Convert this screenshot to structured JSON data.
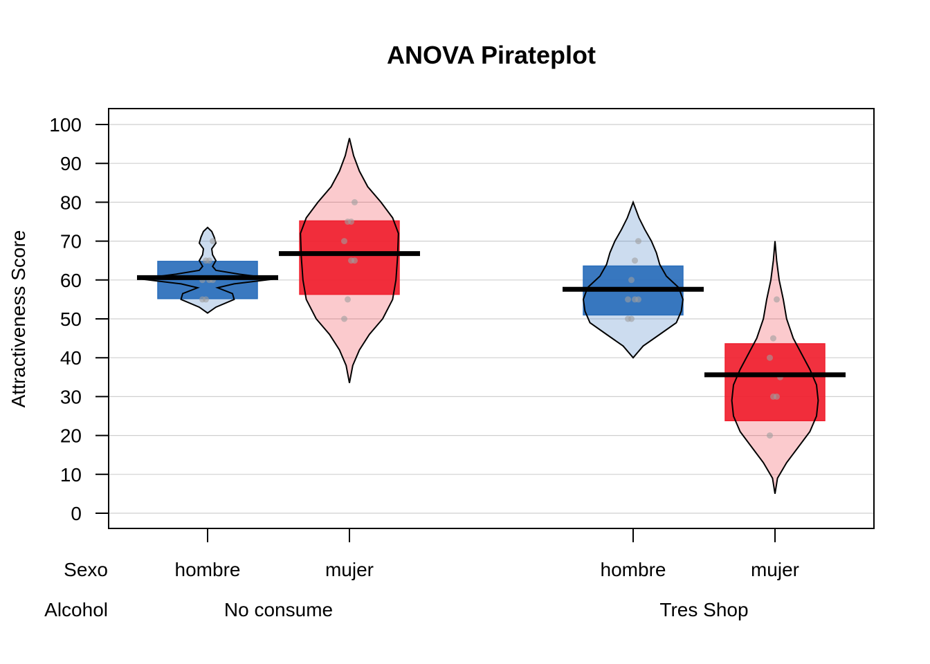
{
  "chart_data": {
    "type": "pirateplot",
    "title": "ANOVA Pirateplot",
    "ylabel": "Attractiveness Score",
    "ylim": [
      0,
      100
    ],
    "yticks": [
      0,
      10,
      20,
      30,
      40,
      50,
      60,
      70,
      80,
      90,
      100
    ],
    "grid": true,
    "row_labels": {
      "sexo": "Sexo",
      "alcohol": "Alcohol"
    },
    "alcohol_groups": [
      "No consume",
      "Tres Shop"
    ],
    "colors": {
      "hombre": "#2a6ebb",
      "mujer": "#f0202f",
      "mean_line": "#000000",
      "point": "#9e9e9e"
    },
    "groups": [
      {
        "sexo": "hombre",
        "alcohol": "No consume",
        "mean": 60.6,
        "ci": [
          55.2,
          64.8
        ],
        "range": [
          51.5,
          73.5
        ],
        "points": [
          55,
          55,
          60,
          60,
          60,
          65,
          65,
          70
        ],
        "density": [
          [
            51.5,
            0.0
          ],
          [
            53,
            0.1
          ],
          [
            55,
            0.32
          ],
          [
            56.5,
            0.3
          ],
          [
            58,
            0.12
          ],
          [
            59,
            0.32
          ],
          [
            60.3,
            0.82
          ],
          [
            61.5,
            0.38
          ],
          [
            62.5,
            0.1
          ],
          [
            63.5,
            0.06
          ],
          [
            65,
            0.1
          ],
          [
            66.5,
            0.06
          ],
          [
            68,
            0.05
          ],
          [
            69.5,
            0.1
          ],
          [
            71,
            0.08
          ],
          [
            72.5,
            0.05
          ],
          [
            73.5,
            0.0
          ]
        ]
      },
      {
        "sexo": "mujer",
        "alcohol": "No consume",
        "mean": 66.8,
        "ci": [
          56.3,
          75.2
        ],
        "range": [
          33.5,
          96.5
        ],
        "points": [
          50,
          55,
          65,
          65,
          70,
          75,
          75,
          80
        ],
        "density": [
          [
            33.5,
            0.0
          ],
          [
            38,
            0.04
          ],
          [
            42,
            0.12
          ],
          [
            46,
            0.24
          ],
          [
            50,
            0.4
          ],
          [
            55,
            0.52
          ],
          [
            60,
            0.56
          ],
          [
            66,
            0.58
          ],
          [
            72,
            0.59
          ],
          [
            76,
            0.52
          ],
          [
            80,
            0.38
          ],
          [
            84,
            0.22
          ],
          [
            88,
            0.12
          ],
          [
            92,
            0.05
          ],
          [
            96.5,
            0.0
          ]
        ]
      },
      {
        "sexo": "hombre",
        "alcohol": "Tres Shop",
        "mean": 57.6,
        "ci": [
          51.0,
          63.6
        ],
        "range": [
          40,
          80
        ],
        "points": [
          50,
          50,
          55,
          55,
          55,
          60,
          65,
          70
        ],
        "density": [
          [
            40,
            0.0
          ],
          [
            43,
            0.12
          ],
          [
            46,
            0.32
          ],
          [
            49,
            0.52
          ],
          [
            52,
            0.58
          ],
          [
            55,
            0.6
          ],
          [
            58,
            0.55
          ],
          [
            61,
            0.4
          ],
          [
            64,
            0.32
          ],
          [
            67,
            0.28
          ],
          [
            70,
            0.22
          ],
          [
            73,
            0.14
          ],
          [
            76,
            0.07
          ],
          [
            80,
            0.0
          ]
        ]
      },
      {
        "sexo": "mujer",
        "alcohol": "Tres Shop",
        "mean": 35.6,
        "ci": [
          23.8,
          43.6
        ],
        "range": [
          5,
          70
        ],
        "points": [
          20,
          30,
          30,
          35,
          40,
          45,
          55
        ],
        "density": [
          [
            5,
            0.0
          ],
          [
            9,
            0.03
          ],
          [
            13,
            0.14
          ],
          [
            17,
            0.28
          ],
          [
            21,
            0.42
          ],
          [
            25,
            0.5
          ],
          [
            29,
            0.52
          ],
          [
            33,
            0.5
          ],
          [
            37,
            0.42
          ],
          [
            41,
            0.32
          ],
          [
            45,
            0.22
          ],
          [
            50,
            0.14
          ],
          [
            55,
            0.1
          ],
          [
            60,
            0.05
          ],
          [
            65,
            0.02
          ],
          [
            70,
            0.0
          ]
        ]
      }
    ]
  }
}
